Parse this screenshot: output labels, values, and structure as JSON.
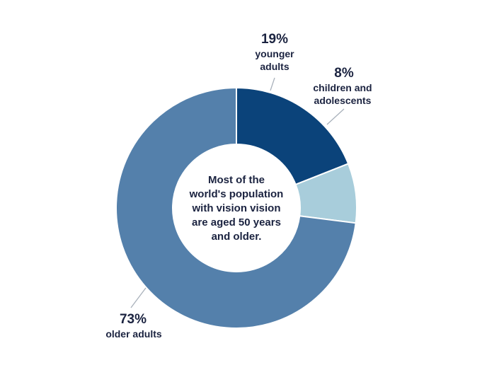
{
  "chart_data": {
    "type": "pie",
    "variant": "donut",
    "slices": [
      {
        "key": "younger",
        "label_lines": [
          "younger",
          "adults"
        ],
        "value": 19,
        "value_label": "19%",
        "color": "#0b437a"
      },
      {
        "key": "children",
        "label_lines": [
          "children and",
          "adolescents"
        ],
        "value": 8,
        "value_label": "8%",
        "color": "#a8cddb"
      },
      {
        "key": "older",
        "label_lines": [
          "older adults"
        ],
        "value": 73,
        "value_label": "73%",
        "color": "#5480ab"
      }
    ],
    "center_text": [
      "Most of the",
      "world's population",
      "with vision vision",
      "are aged 50 years",
      "and older."
    ],
    "text_color": "#1b2340"
  }
}
